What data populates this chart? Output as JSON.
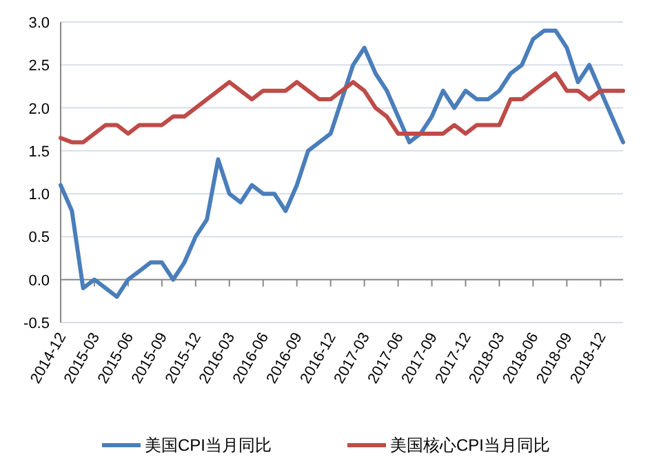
{
  "chart_data": {
    "type": "line",
    "categories": [
      "2014-12",
      null,
      null,
      "2015-03",
      null,
      null,
      "2015-06",
      null,
      null,
      "2015-09",
      null,
      null,
      "2015-12",
      null,
      null,
      "2016-03",
      null,
      null,
      "2016-06",
      null,
      null,
      "2016-09",
      null,
      null,
      "2016-12",
      null,
      null,
      "2017-03",
      null,
      null,
      "2017-06",
      null,
      null,
      "2017-09",
      null,
      null,
      "2017-12",
      null,
      null,
      "2018-03",
      null,
      null,
      "2018-06",
      null,
      null,
      "2018-09",
      null,
      null,
      "2018-12",
      null,
      null
    ],
    "series": [
      {
        "name": "美国CPI当月同比",
        "color": "#4a7ebb",
        "values": [
          1.1,
          0.8,
          -0.1,
          0.0,
          -0.1,
          -0.2,
          0.0,
          0.1,
          0.2,
          0.2,
          0.0,
          0.2,
          0.5,
          0.7,
          1.4,
          1.0,
          0.9,
          1.1,
          1.0,
          1.0,
          0.8,
          1.1,
          1.5,
          1.6,
          1.7,
          2.1,
          2.5,
          2.7,
          2.4,
          2.2,
          1.9,
          1.6,
          1.7,
          1.9,
          2.2,
          2.0,
          2.2,
          2.1,
          2.1,
          2.2,
          2.4,
          2.5,
          2.8,
          2.9,
          2.9,
          2.7,
          2.3,
          2.5,
          2.2,
          1.9,
          1.6
        ]
      },
      {
        "name": "美国核心CPI当月同比",
        "color": "#be4b48",
        "values": [
          1.65,
          1.6,
          1.6,
          1.7,
          1.8,
          1.8,
          1.7,
          1.8,
          1.8,
          1.8,
          1.9,
          1.9,
          2.0,
          2.1,
          2.2,
          2.3,
          2.2,
          2.1,
          2.2,
          2.2,
          2.2,
          2.3,
          2.2,
          2.1,
          2.1,
          2.2,
          2.3,
          2.2,
          2.0,
          1.9,
          1.7,
          1.7,
          1.7,
          1.7,
          1.7,
          1.8,
          1.7,
          1.8,
          1.8,
          1.8,
          2.1,
          2.1,
          2.2,
          2.3,
          2.4,
          2.2,
          2.2,
          2.1,
          2.2,
          2.2,
          2.2
        ]
      }
    ],
    "ylim": [
      -0.5,
      3.0
    ],
    "yticks": [
      {
        "value": -0.5,
        "label": "-0.5"
      },
      {
        "value": 0,
        "label": "0.0"
      },
      {
        "value": 0.5,
        "label": "0.5"
      },
      {
        "value": 1,
        "label": "1.0"
      },
      {
        "value": 1.5,
        "label": "1.5"
      },
      {
        "value": 2,
        "label": "2.0"
      },
      {
        "value": 2.5,
        "label": "2.5"
      },
      {
        "value": 3,
        "label": "3.0"
      }
    ],
    "grid": "y",
    "legend": "bottom"
  }
}
